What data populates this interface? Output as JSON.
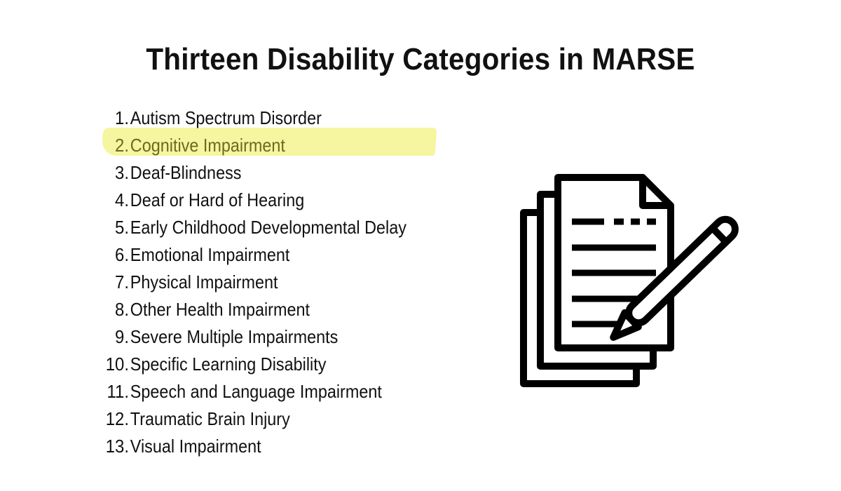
{
  "slide": {
    "title": "Thirteen Disability Categories in MARSE"
  },
  "categories": [
    {
      "number": "1.",
      "label": "Autism Spectrum Disorder"
    },
    {
      "number": "2.",
      "label": "Cognitive Impairment"
    },
    {
      "number": "3.",
      "label": "Deaf-Blindness"
    },
    {
      "number": "4.",
      "label": "Deaf or Hard of Hearing"
    },
    {
      "number": "5.",
      "label": "Early Childhood Developmental Delay"
    },
    {
      "number": "6.",
      "label": "Emotional Impairment"
    },
    {
      "number": "7.",
      "label": "Physical Impairment"
    },
    {
      "number": "8.",
      "label": "Other Health Impairment"
    },
    {
      "number": "9.",
      "label": "Severe Multiple Impairments"
    },
    {
      "number": "10.",
      "label": "Specific Learning Disability"
    },
    {
      "number": "11.",
      "label": "Speech and Language Impairment"
    },
    {
      "number": "12.",
      "label": "Traumatic Brain Injury"
    },
    {
      "number": "13.",
      "label": "Visual Impairment"
    }
  ],
  "highlighted_item": "Cognitive Impairment",
  "colors": {
    "highlight": "#f6f5a0",
    "highlighted_text": "#6b6a1e",
    "text": "#111111"
  },
  "icons": {
    "illustration": "documents-with-pencil-icon"
  }
}
